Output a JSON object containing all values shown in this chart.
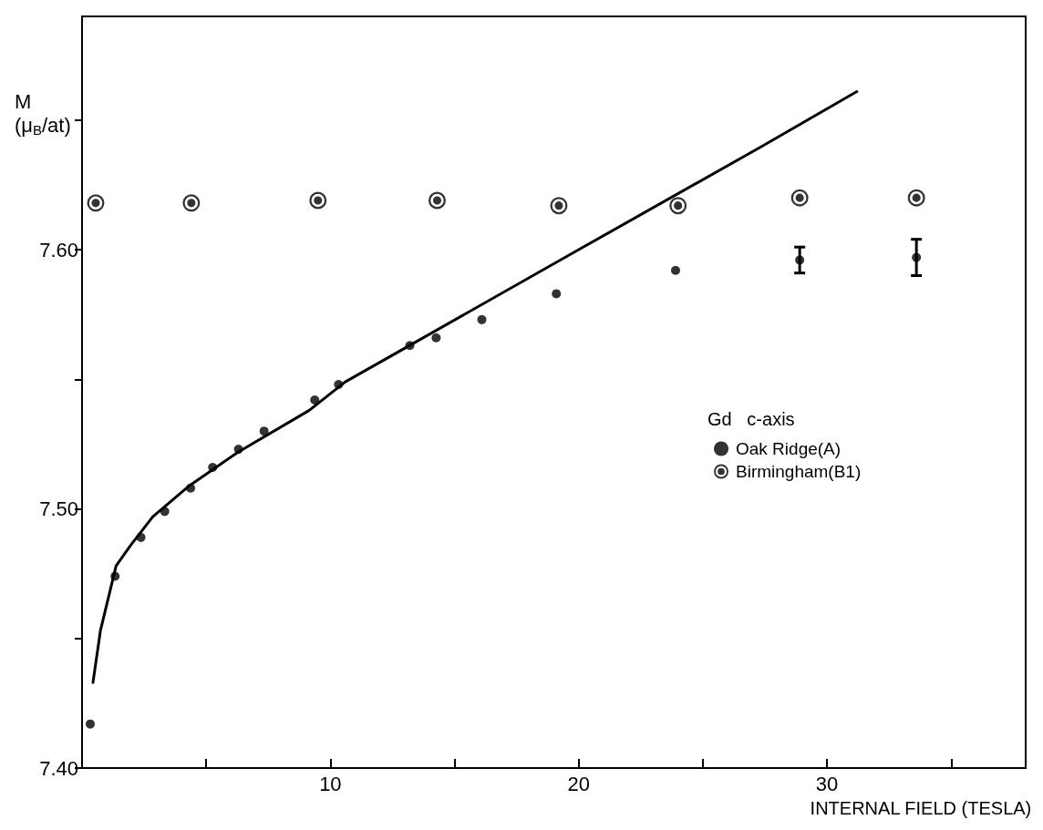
{
  "chart_data": {
    "type": "scatter",
    "xlabel": "INTERNAL FIELD (TESLA)",
    "ylabel": "M (μ$_{B}$/at)",
    "legend_title": "Gd   c-axis",
    "xlim": [
      0,
      38
    ],
    "xticks": [
      {
        "value": 0,
        "label": null
      },
      {
        "value": 5,
        "label": null
      },
      10,
      {
        "value": 15,
        "label": null
      },
      20,
      {
        "value": 25,
        "label": null
      },
      30,
      {
        "value": 35,
        "label": null
      }
    ],
    "ylim": [
      7.4,
      7.69
    ],
    "yticks": [
      {
        "value": 7.4,
        "label": "7.40"
      },
      {
        "value": 7.45,
        "label": null
      },
      {
        "value": 7.5,
        "label": "7.50"
      },
      {
        "value": 7.55,
        "label": null
      },
      {
        "value": 7.6,
        "label": "7.60"
      },
      {
        "value": 7.65,
        "label": null
      }
    ],
    "grid": false,
    "legend": "right",
    "series": [
      {
        "name": "Oak Ridge(A)",
        "color": "#000000",
        "marker": "circle",
        "x": [
          0.33,
          1.33,
          2.37,
          3.33,
          4.37,
          5.26,
          6.3,
          7.33,
          9.37,
          10.33,
          13.2,
          14.26,
          16.1,
          19.1,
          23.9,
          28.9,
          33.6
        ],
        "values": [
          7.417,
          7.474,
          7.489,
          7.499,
          7.508,
          7.516,
          7.523,
          7.53,
          7.542,
          7.548,
          7.563,
          7.566,
          7.573,
          7.583,
          7.592,
          7.596,
          7.597
        ],
        "errors": [
          null,
          null,
          null,
          null,
          null,
          null,
          null,
          null,
          null,
          null,
          null,
          null,
          null,
          null,
          null,
          [
            7.591,
            7.601
          ],
          [
            7.59,
            7.604
          ]
        ]
      },
      {
        "name": "Birmingham(B1)",
        "color": "#000000",
        "marker": "circle-dot",
        "x": [
          0.55,
          4.4,
          9.5,
          14.3,
          19.2,
          24.0,
          28.9,
          33.6
        ],
        "values": [
          7.618,
          7.618,
          7.619,
          7.619,
          7.617,
          7.617,
          7.62,
          7.62
        ]
      },
      {
        "type": "line",
        "color": "#000000",
        "marker": "none",
        "line_style": "solid",
        "x": [
          0.44,
          0.74,
          1.37,
          1.96,
          2.85,
          4.33,
          6.3,
          9.15,
          10.6,
          13,
          20,
          27.4,
          31.2
        ],
        "values": [
          7.433,
          7.453,
          7.478,
          7.486,
          7.497,
          7.509,
          7.522,
          7.538,
          7.549,
          7.562,
          7.6,
          7.64,
          7.661
        ]
      }
    ]
  }
}
